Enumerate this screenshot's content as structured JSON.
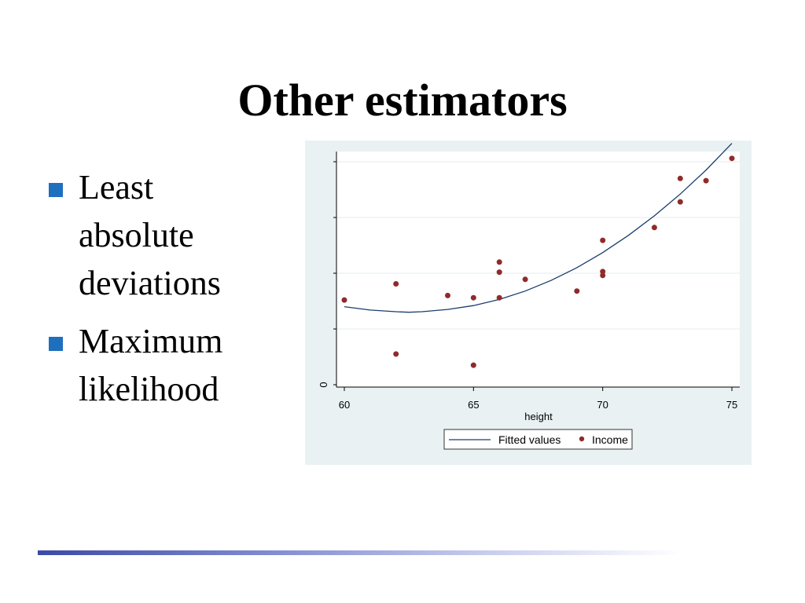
{
  "slide": {
    "title": "Other estimators",
    "bullets": [
      {
        "lines": [
          "Least",
          "absolute",
          "deviations"
        ]
      },
      {
        "lines": [
          "Maximum",
          "likelihood"
        ]
      }
    ],
    "bullet_color": "#1f6fbf"
  },
  "chart_data": {
    "type": "scatter",
    "xlabel": "height",
    "ylabel": "",
    "xlim": [
      60,
      75
    ],
    "x_ticks": [
      60,
      65,
      70,
      75
    ],
    "y_tick_labels": [
      "0"
    ],
    "grid": true,
    "legend": {
      "placement": "bottom",
      "entries": [
        "Fitted values",
        "Income"
      ]
    },
    "colors": {
      "fitted": "#1a3d6d",
      "points": "#8f2b2b",
      "panel": "#e9f1f3"
    },
    "series": [
      {
        "name": "Income",
        "kind": "scatter",
        "points": [
          [
            60,
            1.52
          ],
          [
            62,
            1.81
          ],
          [
            62,
            0.55
          ],
          [
            64,
            1.6
          ],
          [
            65,
            1.56
          ],
          [
            65,
            0.35
          ],
          [
            66,
            2.02
          ],
          [
            66,
            1.56
          ],
          [
            66,
            2.2
          ],
          [
            67,
            1.89
          ],
          [
            69,
            1.68
          ],
          [
            70,
            1.96
          ],
          [
            70,
            2.59
          ],
          [
            70,
            2.03
          ],
          [
            72,
            2.82
          ],
          [
            73,
            3.28
          ],
          [
            73,
            3.7
          ],
          [
            74,
            3.66
          ],
          [
            75,
            4.06
          ]
        ]
      },
      {
        "name": "Fitted values",
        "kind": "line",
        "points": [
          [
            60,
            1.4
          ],
          [
            61,
            1.34
          ],
          [
            62,
            1.31
          ],
          [
            62.5,
            1.3
          ],
          [
            63,
            1.31
          ],
          [
            64,
            1.35
          ],
          [
            65,
            1.42
          ],
          [
            66,
            1.53
          ],
          [
            67,
            1.68
          ],
          [
            68,
            1.87
          ],
          [
            69,
            2.1
          ],
          [
            70,
            2.37
          ],
          [
            71,
            2.68
          ],
          [
            72,
            3.03
          ],
          [
            73,
            3.42
          ],
          [
            74,
            3.85
          ],
          [
            75,
            4.33
          ]
        ]
      }
    ]
  }
}
